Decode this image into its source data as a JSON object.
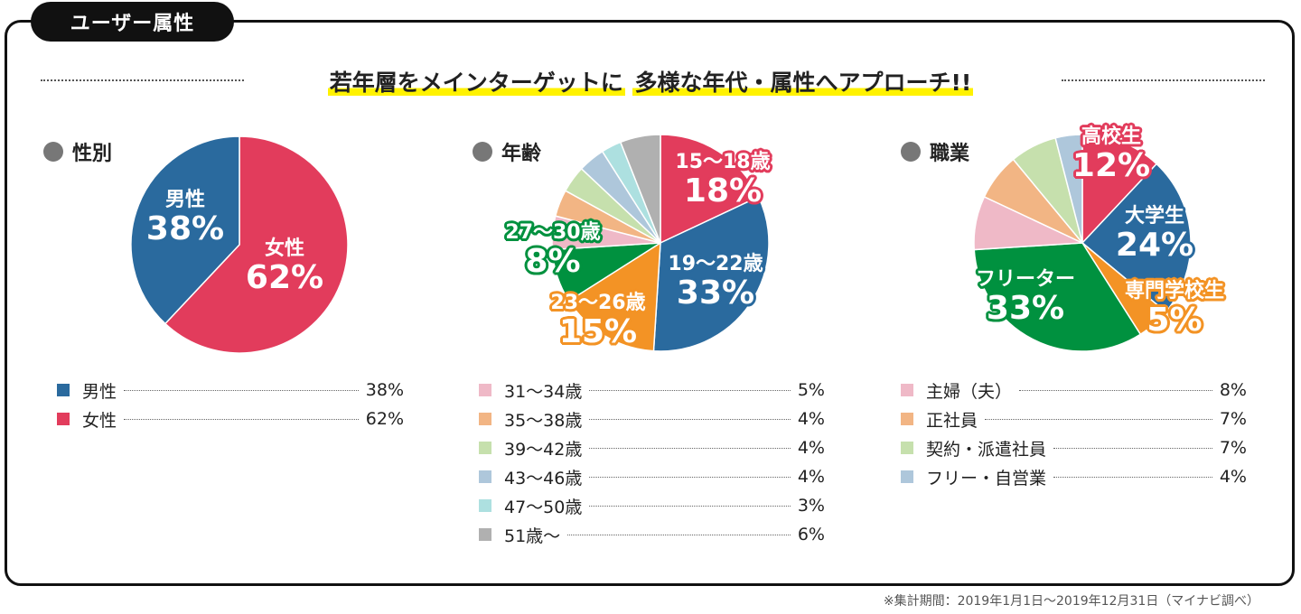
{
  "tab_label": "ユーザー属性",
  "headline": {
    "part1": "若年層をメインターゲットに",
    "part2": "多様な年代・属性へアプローチ!!"
  },
  "footnote": "※集計期間：2019年1月1日〜2019年12月31日（マイナビ調べ）",
  "colors": {
    "red": "#e23c5c",
    "blue": "#2a6a9e",
    "orange": "#f39325",
    "green": "#00913f",
    "pink": "#efb9c7",
    "peach": "#f2b584",
    "lightgreen": "#c6e0ad",
    "lightblue": "#aec7db",
    "cyan": "#ade0e0",
    "gray": "#b0b0b0"
  },
  "chart_data": [
    {
      "type": "pie",
      "title": "性別",
      "slices": [
        {
          "label": "女性",
          "value": 62,
          "display": "62%",
          "color": "#e23c5c",
          "callout": true
        },
        {
          "label": "男性",
          "value": 38,
          "display": "38%",
          "color": "#2a6a9e",
          "callout": true
        }
      ],
      "legend": [
        {
          "label": "男性",
          "display": "38%",
          "color": "#2a6a9e"
        },
        {
          "label": "女性",
          "display": "62%",
          "color": "#e23c5c"
        }
      ]
    },
    {
      "type": "pie",
      "title": "年齢",
      "slices": [
        {
          "label": "15〜18歳",
          "value": 18,
          "display": "18%",
          "color": "#e23c5c",
          "callout": true
        },
        {
          "label": "19〜22歳",
          "value": 33,
          "display": "33%",
          "color": "#2a6a9e",
          "callout": true
        },
        {
          "label": "23〜26歳",
          "value": 15,
          "display": "15%",
          "color": "#f39325",
          "callout": true
        },
        {
          "label": "27〜30歳",
          "value": 8,
          "display": "8%",
          "color": "#00913f",
          "callout": true
        },
        {
          "label": "31〜34歳",
          "value": 5,
          "display": "5%",
          "color": "#efb9c7"
        },
        {
          "label": "35〜38歳",
          "value": 4,
          "display": "4%",
          "color": "#f2b584"
        },
        {
          "label": "39〜42歳",
          "value": 4,
          "display": "4%",
          "color": "#c6e0ad"
        },
        {
          "label": "43〜46歳",
          "value": 4,
          "display": "4%",
          "color": "#aec7db"
        },
        {
          "label": "47〜50歳",
          "value": 3,
          "display": "3%",
          "color": "#ade0e0"
        },
        {
          "label": "51歳〜",
          "value": 6,
          "display": "6%",
          "color": "#b0b0b0"
        }
      ],
      "legend": [
        {
          "label": "31〜34歳",
          "display": "5%",
          "color": "#efb9c7"
        },
        {
          "label": "35〜38歳",
          "display": "4%",
          "color": "#f2b584"
        },
        {
          "label": "39〜42歳",
          "display": "4%",
          "color": "#c6e0ad"
        },
        {
          "label": "43〜46歳",
          "display": "4%",
          "color": "#aec7db"
        },
        {
          "label": "47〜50歳",
          "display": "3%",
          "color": "#ade0e0"
        },
        {
          "label": "51歳〜",
          "display": "6%",
          "color": "#b0b0b0"
        }
      ]
    },
    {
      "type": "pie",
      "title": "職業",
      "slices": [
        {
          "label": "高校生",
          "value": 12,
          "display": "12%",
          "color": "#e23c5c",
          "callout": true
        },
        {
          "label": "大学生",
          "value": 24,
          "display": "24%",
          "color": "#2a6a9e",
          "callout": true
        },
        {
          "label": "専門学校生",
          "value": 5,
          "display": "5%",
          "color": "#f39325",
          "callout": true
        },
        {
          "label": "フリーター",
          "value": 33,
          "display": "33%",
          "color": "#00913f",
          "callout": true
        },
        {
          "label": "主婦（夫）",
          "value": 8,
          "display": "8%",
          "color": "#efb9c7"
        },
        {
          "label": "正社員",
          "value": 7,
          "display": "7%",
          "color": "#f2b584"
        },
        {
          "label": "契約・派遣社員",
          "value": 7,
          "display": "7%",
          "color": "#c6e0ad"
        },
        {
          "label": "フリー・自営業",
          "value": 4,
          "display": "4%",
          "color": "#aec7db"
        }
      ],
      "legend": [
        {
          "label": "主婦（夫）",
          "display": "8%",
          "color": "#efb9c7"
        },
        {
          "label": "正社員",
          "display": "7%",
          "color": "#f2b584"
        },
        {
          "label": "契約・派遣社員",
          "display": "7%",
          "color": "#c6e0ad"
        },
        {
          "label": "フリー・自営業",
          "display": "4%",
          "color": "#aec7db"
        }
      ]
    }
  ]
}
